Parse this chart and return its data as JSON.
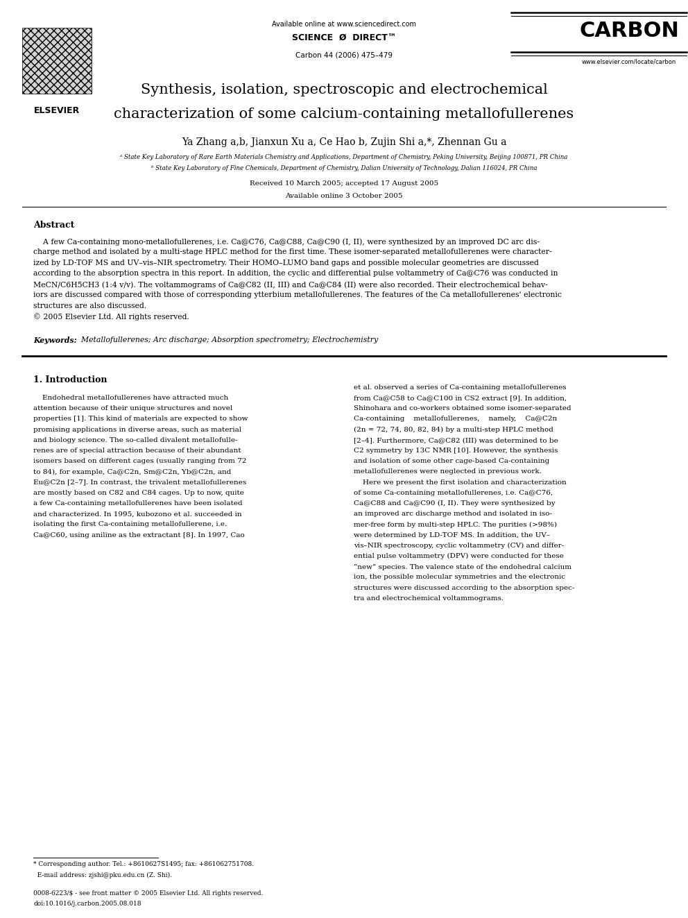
{
  "bg_color": "#ffffff",
  "fig_width": 9.92,
  "fig_height": 13.23,
  "header_available": "Available online at www.sciencedirect.com",
  "header_sd": "SCIENCE  Ø  DIRECT™",
  "header_journal_info": "Carbon 44 (2006) 475–479",
  "header_carbon": "CARBON",
  "header_url": "www.elsevier.com/locate/carbon",
  "elsevier_text": "ELSEVIER",
  "title_line1": "Synthesis, isolation, spectroscopic and electrochemical",
  "title_line2": "characterization of some calcium-containing metallofullerenes",
  "authors": "Ya Zhang a,b, Jianxun Xu a, Ce Hao b, Zujin Shi a,*, Zhennan Gu a",
  "affil1": "ᵃ State Key Laboratory of Rare Earth Materials Chemistry and Applications, Department of Chemistry, Peking University, Beijing 100871, PR China",
  "affil2": "ᵇ State Key Laboratory of Fine Chemicals, Department of Chemistry, Dalian University of Technology, Dalian 116024, PR China",
  "received": "Received 10 March 2005; accepted 17 August 2005",
  "available_online": "Available online 3 October 2005",
  "abstract_title": "Abstract",
  "abstract_body": [
    "    A few Ca-containing mono-metallofullerenes, i.e. Ca@C76, Ca@C88, Ca@C90 (I, II), were synthesized by an improved DC arc dis-",
    "charge method and isolated by a multi-stage HPLC method for the first time. These isomer-separated metallofullerenes were character-",
    "ized by LD-TOF MS and UV–vis–NIR spectrometry. Their HOMO–LUMO band gaps and possible molecular geometries are discussed",
    "according to the absorption spectra in this report. In addition, the cyclic and differential pulse voltammetry of Ca@C76 was conducted in",
    "MeCN/C6H5CH3 (1:4 v/v). The voltammograms of Ca@C82 (II, III) and Ca@C84 (II) were also recorded. Their electrochemical behav-",
    "iors are discussed compared with those of corresponding ytterbium metallofullerenes. The features of the Ca metallofullerenes' electronic",
    "structures are also discussed.",
    "© 2005 Elsevier Ltd. All rights reserved."
  ],
  "keywords_label": "Keywords:",
  "keywords_body": "  Metallofullerenes; Arc discharge; Absorption spectrometry; Electrochemistry",
  "sec1_title": "1. Introduction",
  "sec1_left": [
    "    Endohedral metallofullerenes have attracted much",
    "attention because of their unique structures and novel",
    "properties [1]. This kind of materials are expected to show",
    "promising applications in diverse areas, such as material",
    "and biology science. The so-called divalent metallofulle-",
    "renes are of special attraction because of their abundant",
    "isomers based on different cages (usually ranging from 72",
    "to 84), for example, Ca@C2n, Sm@C2n, Yb@C2n, and",
    "Eu@C2n [2–7]. In contrast, the trivalent metallofullerenes",
    "are mostly based on C82 and C84 cages. Up to now, quite",
    "a few Ca-containing metallofullerenes have been isolated",
    "and characterized. In 1995, kubozono et al. succeeded in",
    "isolating the first Ca-containing metallofullerene, i.e.",
    "Ca@C60, using aniline as the extractant [8]. In 1997, Cao"
  ],
  "sec1_right": [
    "et al. observed a series of Ca-containing metallofullerenes",
    "from Ca@C58 to Ca@C100 in CS2 extract [9]. In addition,",
    "Shinohara and co-workers obtained some isomer-separated",
    "Ca-containing    metallofullerenes,    namely,    Ca@C2n",
    "(2n = 72, 74, 80, 82, 84) by a multi-step HPLC method",
    "[2–4]. Furthermore, Ca@C82 (III) was determined to be",
    "C2 symmetry by 13C NMR [10]. However, the synthesis",
    "and isolation of some other cage-based Ca-containing",
    "metallofullerenes were neglected in previous work.",
    "    Here we present the first isolation and characterization",
    "of some Ca-containing metallofullerenes, i.e. Ca@C76,",
    "Ca@C88 and Ca@C90 (I, II). They were synthesized by",
    "an improved arc discharge method and isolated in iso-",
    "mer-free form by multi-step HPLC. The purities (>98%)",
    "were determined by LD-TOF MS. In addition, the UV–",
    "vis–NIR spectroscopy, cyclic voltammetry (CV) and differ-",
    "ential pulse voltammetry (DPV) were conducted for these",
    "“new” species. The valence state of the endohedral calcium",
    "ion, the possible molecular symmetries and the electronic",
    "structures were discussed according to the absorption spec-",
    "tra and electrochemical voltammograms."
  ],
  "footnote": "* Corresponding author. Tel.: +8610627S1495; fax: +861062751708.",
  "footnote2": "  E-mail address: zjshi@pku.edu.cn (Z. Shi).",
  "footer1": "0008-6223/$ - see front matter © 2005 Elsevier Ltd. All rights reserved.",
  "footer2": "doi:10.1016/j.carbon.2005.08.018"
}
